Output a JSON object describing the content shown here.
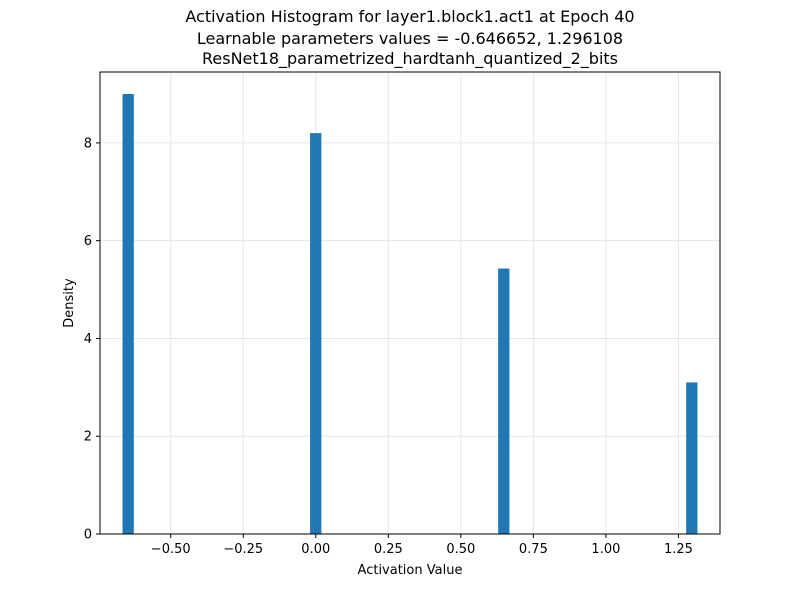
{
  "chart_data": {
    "type": "bar",
    "title": [
      "Activation Histogram for layer1.block1.act1 at Epoch 40",
      "Learnable parameters values = -0.646652, 1.296108",
      "ResNet18_parametrized_hardtanh_quantized_2_bits"
    ],
    "xlabel": "Activation Value",
    "ylabel": "Density",
    "xlim": [
      -0.7438,
      1.3933
    ],
    "ylim": [
      0,
      9.45
    ],
    "xticks": [
      {
        "value": -0.5,
        "label": "−0.50"
      },
      {
        "value": -0.25,
        "label": "−0.25"
      },
      {
        "value": 0.0,
        "label": "0.00"
      },
      {
        "value": 0.25,
        "label": "0.25"
      },
      {
        "value": 0.5,
        "label": "0.50"
      },
      {
        "value": 0.75,
        "label": "0.75"
      },
      {
        "value": 1.0,
        "label": "1.00"
      },
      {
        "value": 1.25,
        "label": "1.25"
      }
    ],
    "yticks": [
      {
        "value": 0,
        "label": "0"
      },
      {
        "value": 2,
        "label": "2"
      },
      {
        "value": 4,
        "label": "4"
      },
      {
        "value": 6,
        "label": "6"
      },
      {
        "value": 8,
        "label": "8"
      }
    ],
    "bin_width": 0.0389,
    "bins": [
      {
        "x": -0.6467,
        "value": 9.0
      },
      {
        "x": -0.0002,
        "value": 8.2
      },
      {
        "x": 0.648,
        "value": 5.43
      },
      {
        "x": 1.2961,
        "value": 3.1
      }
    ],
    "grid": true,
    "colors": {
      "bar": "#1f77b4",
      "grid": "#e5e5e5",
      "axis": "#000000"
    }
  }
}
